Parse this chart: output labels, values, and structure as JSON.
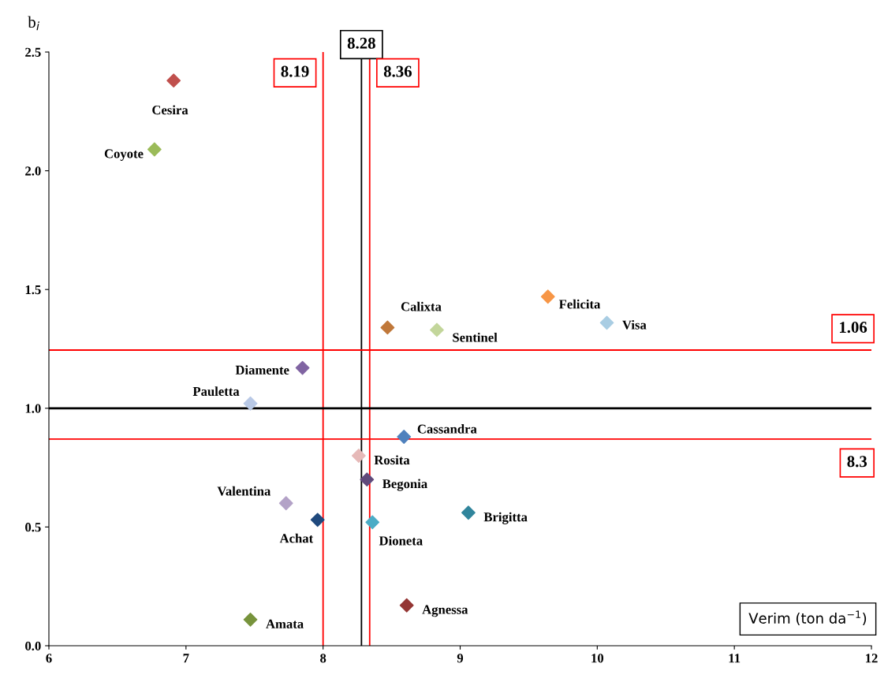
{
  "chart_data": {
    "type": "scatter",
    "xlabel": "Verim (ton da$^{−1}$)",
    "ylabel": "b$_{i}$",
    "xlim": [
      6,
      12
    ],
    "ylim": [
      0,
      2.5
    ],
    "xticks": [
      6,
      7,
      8,
      9,
      10,
      11,
      12
    ],
    "yticks": [
      {
        "value": 0,
        "label": "0.0"
      },
      {
        "value": 0.5,
        "label": "0.5"
      },
      {
        "value": 1,
        "label": "1.0"
      },
      {
        "value": 1.5,
        "label": "1.5"
      },
      {
        "value": 2,
        "label": "2.0"
      },
      {
        "value": 2.5,
        "label": "2.5"
      }
    ],
    "marker": "diamond",
    "grid": false,
    "annotations": [
      "8.28",
      "8.19",
      "8.36",
      "1.06",
      "8.3"
    ],
    "series": [
      {
        "name": "Cesira",
        "color": "#c0504d",
        "x": [
          6.91
        ],
        "values": [
          2.38
        ]
      },
      {
        "name": "Coyote",
        "color": "#9bbb59",
        "x": [
          6.77
        ],
        "values": [
          2.09
        ]
      },
      {
        "name": "Felicita",
        "color": "#f79646",
        "x": [
          9.64
        ],
        "values": [
          1.47
        ]
      },
      {
        "name": "Visa",
        "color": "#a9cde3",
        "x": [
          10.07
        ],
        "values": [
          1.36
        ]
      },
      {
        "name": "Calixta",
        "color": "#c0783a",
        "x": [
          8.47
        ],
        "values": [
          1.34
        ]
      },
      {
        "name": "Sentinel",
        "color": "#c3d69b",
        "x": [
          8.83
        ],
        "values": [
          1.33
        ]
      },
      {
        "name": "Diamente",
        "color": "#8064a2",
        "x": [
          7.85
        ],
        "values": [
          1.17
        ]
      },
      {
        "name": "Pauletta",
        "color": "#b9c9e6",
        "x": [
          7.47
        ],
        "values": [
          1.02
        ]
      },
      {
        "name": "Cassandra",
        "color": "#4f81bd",
        "x": [
          8.59
        ],
        "values": [
          0.88
        ]
      },
      {
        "name": "Rosita",
        "color": "#e6b9b8",
        "x": [
          8.26
        ],
        "values": [
          0.8
        ]
      },
      {
        "name": "Begonia",
        "color": "#604a7b",
        "x": [
          8.32
        ],
        "values": [
          0.7
        ]
      },
      {
        "name": "Valentina",
        "color": "#b3a2c7",
        "x": [
          7.73
        ],
        "values": [
          0.6
        ]
      },
      {
        "name": "Brigitta",
        "color": "#31859c",
        "x": [
          9.06
        ],
        "values": [
          0.56
        ]
      },
      {
        "name": "Achat",
        "color": "#1f497d",
        "x": [
          7.96
        ],
        "values": [
          0.53
        ]
      },
      {
        "name": "Dioneta",
        "color": "#4bacc6",
        "x": [
          8.36
        ],
        "values": [
          0.52
        ]
      },
      {
        "name": "Agnessa",
        "color": "#943634",
        "x": [
          8.61
        ],
        "values": [
          0.17
        ]
      },
      {
        "name": "Amata",
        "color": "#77933c",
        "x": [
          7.47
        ],
        "values": [
          0.11
        ]
      }
    ],
    "ref_lines": [
      {
        "axis": "x",
        "value": 8.28,
        "color": "#000000"
      },
      {
        "axis": "x",
        "value": 8.0,
        "color": "#ff0000"
      },
      {
        "axis": "x",
        "value": 8.34,
        "color": "#ff0000"
      },
      {
        "axis": "y",
        "value": 1.0,
        "color": "#000000"
      },
      {
        "axis": "y",
        "value": 1.245,
        "color": "#ff0000"
      },
      {
        "axis": "y",
        "value": 0.87,
        "color": "#ff0000"
      }
    ]
  }
}
